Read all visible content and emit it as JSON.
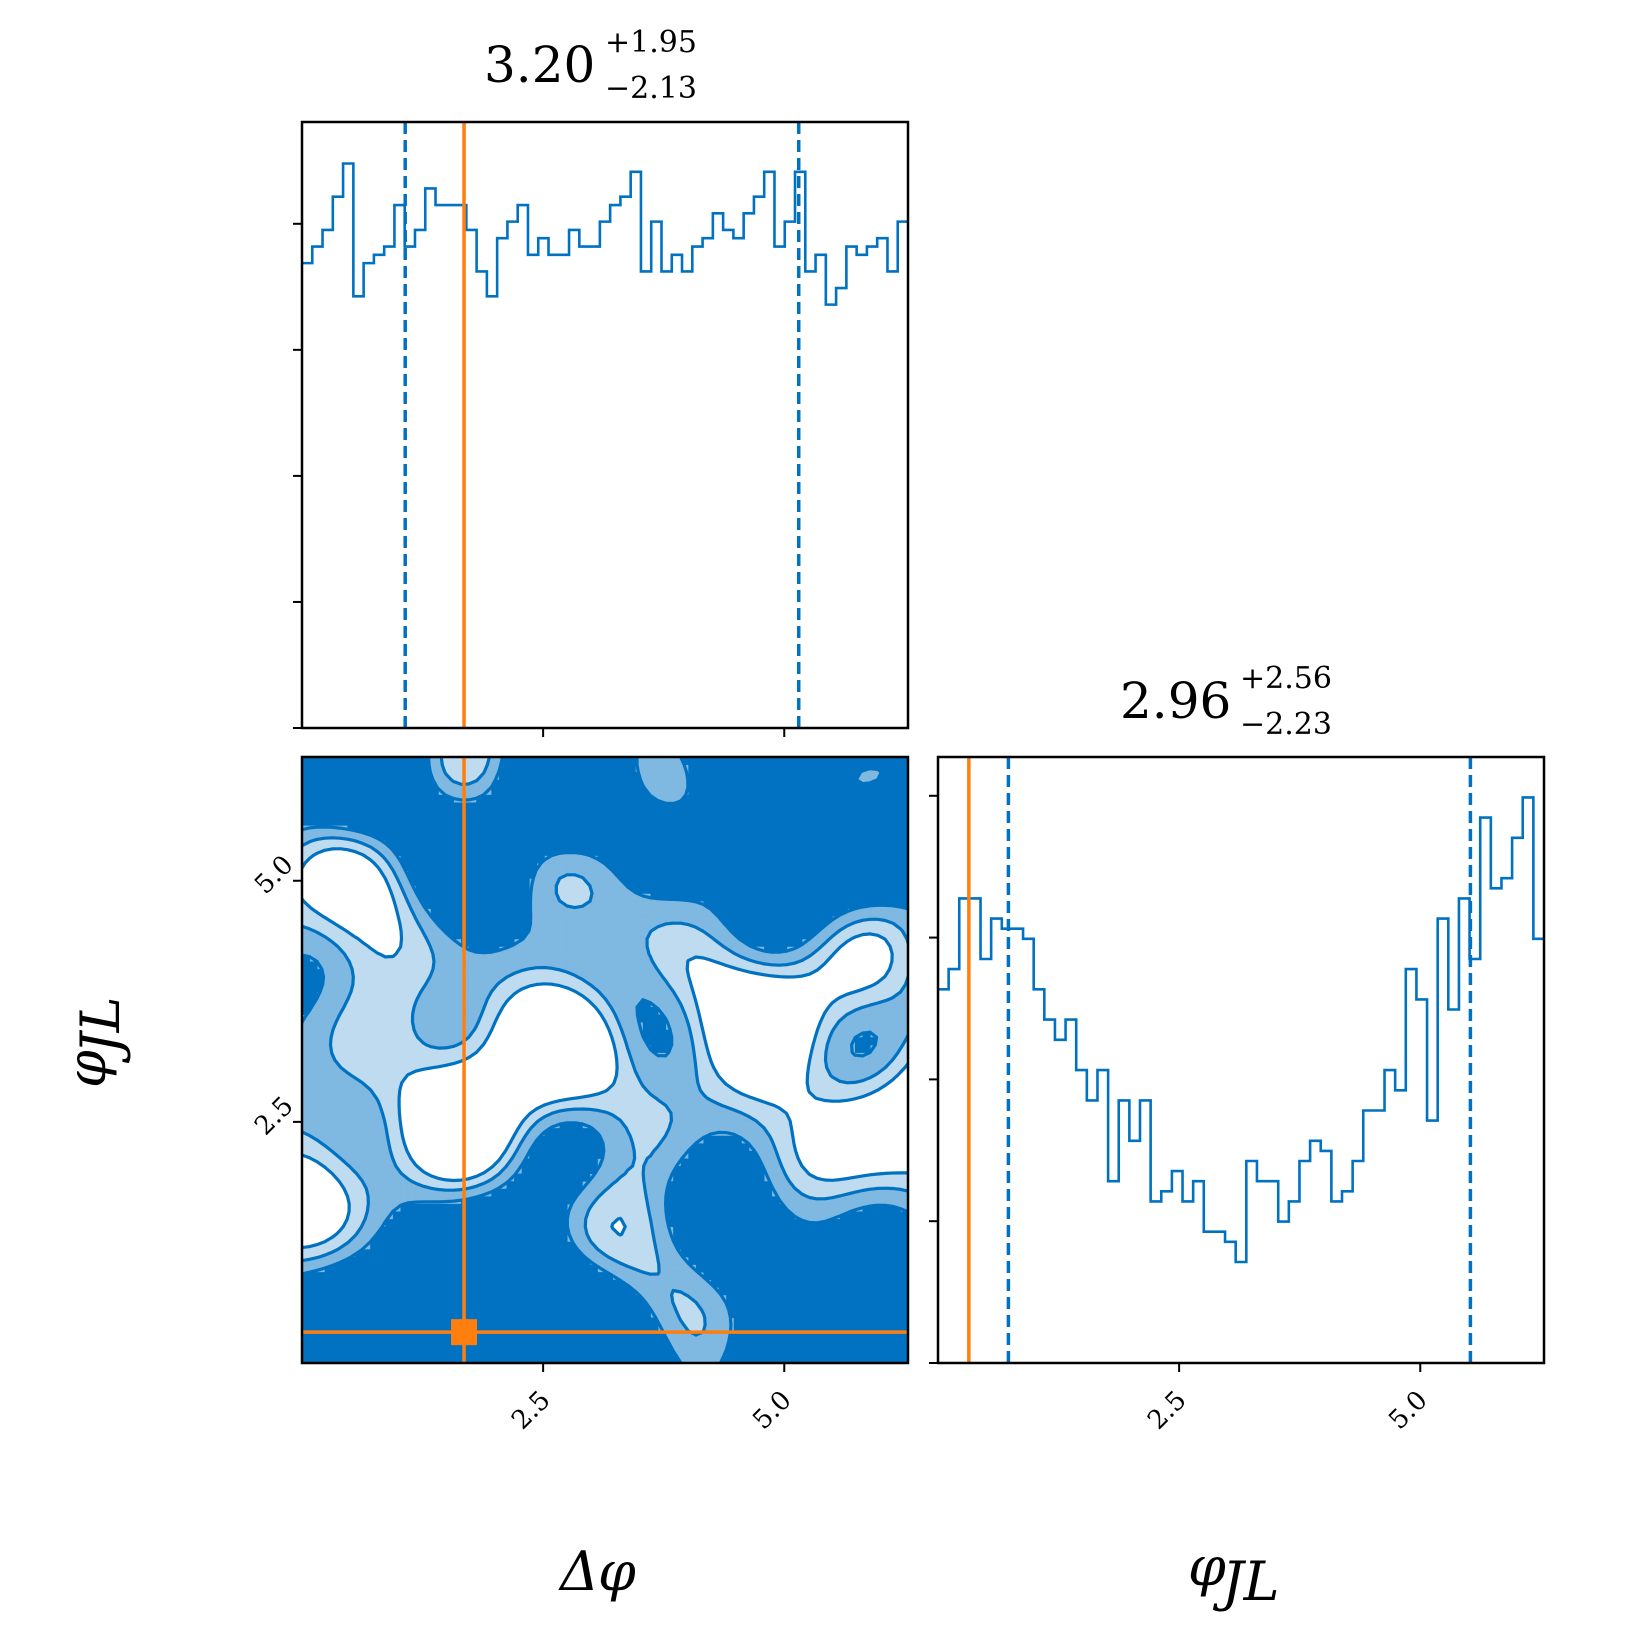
{
  "chart_data": {
    "type": "corner",
    "colors": {
      "posterior": "#0072C1",
      "truth": "#FF7F0E"
    },
    "parameters": [
      {
        "symbol": "Δφ",
        "label_parts": [
          "Δ",
          "φ",
          ""
        ],
        "median": "3.20",
        "plus": "+1.95",
        "minus": "−2.13"
      },
      {
        "symbol": "φJL",
        "label_parts": [
          "",
          "φ",
          "JL"
        ],
        "median": "2.96",
        "plus": "+2.56",
        "minus": "−2.23"
      }
    ],
    "tick_labels": [
      "2.5",
      "5.0"
    ],
    "tick_values": [
      2.5,
      5.0
    ],
    "axis_range": [
      0.0,
      6.283
    ],
    "truth": {
      "delta_phi": 1.68,
      "phi_jl": 0.32
    },
    "marginal_delta_phi": {
      "type": "step-histogram",
      "bins_start": 0.0,
      "bins_end": 6.283,
      "counts": [
        56,
        58,
        60,
        64,
        68,
        52,
        56,
        57,
        58,
        63,
        58,
        60,
        65,
        63,
        63,
        63,
        60,
        55,
        52,
        59,
        61,
        63,
        57,
        59,
        57,
        57,
        60,
        58,
        58,
        61,
        63,
        64,
        67,
        55,
        61,
        55,
        57,
        55,
        58,
        59,
        62,
        60,
        59,
        62,
        64,
        67,
        58,
        61,
        67,
        55,
        57,
        51,
        53,
        58,
        57,
        58,
        59,
        55,
        61
      ],
      "quantile_lines": [
        1.07,
        5.15
      ]
    },
    "marginal_phi_jl": {
      "type": "step-histogram",
      "bins_start": 0.0,
      "bins_end": 6.283,
      "counts": [
        77,
        79,
        86,
        86,
        80,
        84,
        83,
        83,
        82,
        77,
        74,
        72,
        74,
        69,
        66,
        69,
        58,
        66,
        62,
        66,
        56,
        57,
        59,
        56,
        58,
        53,
        53,
        52,
        50,
        60,
        58,
        58,
        54,
        56,
        60,
        62,
        61,
        56,
        57,
        60,
        65,
        65,
        69,
        67,
        79,
        76,
        64,
        84,
        75,
        86,
        80,
        94,
        87,
        88,
        92,
        96,
        82
      ],
      "quantile_lines": [
        0.73,
        5.52
      ]
    },
    "joint_density": {
      "type": "filled-contour",
      "levels": 4,
      "level_colors": [
        "#0072C1",
        "#7FB8E0",
        "#BFDBF0",
        "#FFFFFF"
      ]
    }
  }
}
